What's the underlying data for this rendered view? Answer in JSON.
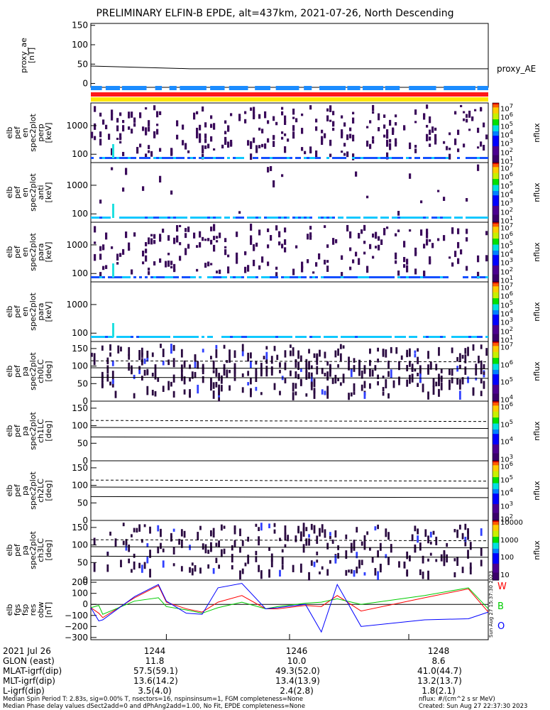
{
  "title": "PRELIMINARY ELFIN-B EPDE, alt=437km, 2021-07-26, North Descending",
  "panels": [
    {
      "ylabel_lines": [
        "proxy_ae",
        "[nT]"
      ],
      "right_label": "proxy_AE",
      "yticks": [
        "150",
        "100",
        "50",
        "0"
      ]
    },
    {
      "ylabel_lines": [
        "elb",
        "pef",
        "en",
        "spec2plot",
        "perp",
        "[keV]"
      ],
      "yticks": [
        "1000",
        "100"
      ]
    },
    {
      "ylabel_lines": [
        "elb",
        "pef",
        "en",
        "spec2plot",
        "anti",
        "[keV]"
      ],
      "yticks": [
        "1000",
        "100"
      ]
    },
    {
      "ylabel_lines": [
        "elb",
        "pef",
        "en",
        "spec2plot",
        "para",
        "[keV]"
      ],
      "yticks": [
        "1000",
        "100"
      ]
    },
    {
      "ylabel_lines": [
        "elb",
        "pef",
        "en",
        "spec2plot",
        "para",
        "[keV]"
      ],
      "yticks": [
        "1000",
        "100"
      ]
    },
    {
      "ylabel_lines": [
        "elb",
        "pef",
        "pa",
        "spec2plot",
        "ch0LC",
        "[deg]"
      ],
      "yticks": [
        "150",
        "100",
        "50",
        "0"
      ]
    },
    {
      "ylabel_lines": [
        "elb",
        "pef",
        "pa",
        "spec2plot",
        "ch1LC",
        "[deg]"
      ],
      "yticks": [
        "150",
        "100",
        "50",
        "0"
      ]
    },
    {
      "ylabel_lines": [
        "elb",
        "pef",
        "pa",
        "spec2plot",
        "ch2LC",
        "[deg]"
      ],
      "yticks": [
        "150",
        "100",
        "50",
        "0"
      ]
    },
    {
      "ylabel_lines": [
        "elb",
        "pef",
        "pa",
        "spec2plot",
        "ch3LC",
        "[deg]"
      ],
      "yticks": [
        "150",
        "100",
        "50",
        "0"
      ]
    },
    {
      "ylabel_lines": [
        "elb",
        "fgs",
        "fsp",
        "res",
        "obw",
        "[nT]"
      ],
      "yticks": [
        "200",
        "100",
        "0",
        "−100",
        "−200",
        "−300"
      ]
    }
  ],
  "colorbars": [
    {
      "label": "nflux",
      "ticks": [
        "10<sup>7</sup>",
        "10<sup>6</sup>",
        "10<sup>5</sup>",
        "10<sup>4</sup>",
        "10<sup>3</sup>",
        "10<sup>2</sup>",
        "10<sup>1</sup>"
      ]
    },
    {
      "label": "nflux",
      "ticks": [
        "10<sup>7</sup>",
        "10<sup>6</sup>",
        "10<sup>5</sup>",
        "10<sup>4</sup>",
        "10<sup>3</sup>",
        "10<sup>2</sup>",
        "10<sup>1</sup>"
      ]
    },
    {
      "label": "nflux",
      "ticks": [
        "10<sup>7</sup>",
        "10<sup>6</sup>",
        "10<sup>5</sup>",
        "10<sup>4</sup>",
        "10<sup>3</sup>",
        "10<sup>2</sup>",
        "10<sup>1</sup>"
      ]
    },
    {
      "label": "nflux",
      "ticks": [
        "10<sup>7</sup>",
        "10<sup>6</sup>",
        "10<sup>5</sup>",
        "10<sup>4</sup>",
        "10<sup>3</sup>",
        "10<sup>2</sup>",
        "10<sup>1</sup>"
      ]
    },
    {
      "label": "nflux",
      "ticks": [
        "10<sup>7</sup>",
        "10<sup>6</sup>",
        "10<sup>5</sup>",
        "10<sup>4</sup>"
      ]
    },
    {
      "label": "nflux",
      "ticks": [
        "10<sup>6</sup>",
        "10<sup>5</sup>",
        "10<sup>4</sup>",
        "10<sup>3</sup>"
      ]
    },
    {
      "label": "nflux",
      "ticks": [
        "10<sup>6</sup>",
        "10<sup>5</sup>",
        "10<sup>4</sup>",
        "10<sup>3</sup>",
        "10<sup>2</sup>"
      ]
    },
    {
      "label": "nflux",
      "ticks": [
        "10000",
        "1000",
        "100",
        "10"
      ]
    }
  ],
  "fgm_legend": [
    {
      "label": "W",
      "color": "#ff0000"
    },
    {
      "label": "B",
      "color": "#00cc00"
    },
    {
      "label": "O",
      "color": "#0000ff"
    }
  ],
  "side_stamp": "Sun Aug 27 15:37:30 2023",
  "bottom_table": {
    "rows": [
      {
        "label": "2021 Jul 26",
        "values": [
          "1244",
          "1246",
          "1248"
        ]
      },
      {
        "label": "GLON (east)",
        "values": [
          "11.8",
          "10.0",
          "8.6"
        ]
      },
      {
        "label": "MLAT-igrf(dip)",
        "values": [
          "57.5(59.1)",
          "49.3(52.0)",
          "41.0(44.7)"
        ]
      },
      {
        "label": "MLT-igrf(dip)",
        "values": [
          "13.6(14.2)",
          "13.4(13.9)",
          "13.2(13.7)"
        ]
      },
      {
        "label": "L-igrf(dip)",
        "values": [
          "3.5(4.0)",
          "2.4(2.8)",
          "1.8(2.1)"
        ]
      }
    ]
  },
  "footer": {
    "line1_left": "Median Spin Period T: 2.83s, sig=0.00% T, nsectors=16, nspinsinsum=1, FGM completeness=None",
    "line2_left": "Median Phase delay values dSect2add=0 and dPhAng2add=1.00, No Fit, EPDE completeness=None",
    "line1_right": "nflux: #/(cm^2 s sr MeV)",
    "line2_right": "Created: Sun Aug 27 22:37:30 2023"
  },
  "chart_data": {
    "type": "line",
    "title": "PRELIMINARY ELFIN-B EPDE, alt=437km, 2021-07-26, North Descending",
    "x_ticks": [
      "1244",
      "1246",
      "1248"
    ],
    "proxy_ae": {
      "ylabel": "proxy_ae [nT]",
      "ylim": [
        -10,
        155
      ],
      "t": [
        0.0,
        0.25,
        1.0
      ],
      "values": [
        45,
        38,
        38
      ]
    },
    "fgs_fsp_res_obw": {
      "ylabel": "elb fgs fsp res obw [nT]",
      "ylim": [
        -320,
        220
      ],
      "series": [
        {
          "name": "W",
          "color": "#ff0000",
          "t": [
            0.0,
            0.02,
            0.03,
            0.11,
            0.17,
            0.19,
            0.24,
            0.28,
            0.32,
            0.38,
            0.44,
            0.47,
            0.54,
            0.58,
            0.62,
            0.68,
            0.84,
            0.95,
            1.0
          ],
          "values": [
            -30,
            -80,
            -120,
            60,
            170,
            20,
            -40,
            -70,
            20,
            80,
            -40,
            -40,
            -10,
            -20,
            80,
            -60,
            60,
            140,
            -70
          ]
        },
        {
          "name": "B",
          "color": "#00cc00",
          "t": [
            0.0,
            0.02,
            0.03,
            0.11,
            0.17,
            0.19,
            0.24,
            0.28,
            0.32,
            0.38,
            0.44,
            0.47,
            0.54,
            0.58,
            0.62,
            0.68,
            0.84,
            0.95,
            1.0
          ],
          "values": [
            -30,
            -10,
            -90,
            30,
            60,
            -20,
            -50,
            -80,
            -30,
            20,
            -40,
            -20,
            10,
            20,
            50,
            0,
            80,
            150,
            -40
          ]
        },
        {
          "name": "O",
          "color": "#0000ff",
          "t": [
            0.0,
            0.02,
            0.03,
            0.11,
            0.17,
            0.19,
            0.24,
            0.28,
            0.32,
            0.38,
            0.44,
            0.47,
            0.54,
            0.58,
            0.62,
            0.68,
            0.84,
            0.95,
            1.0
          ],
          "values": [
            -30,
            -150,
            -140,
            70,
            180,
            30,
            -80,
            -90,
            150,
            190,
            -40,
            -30,
            0,
            -250,
            180,
            -200,
            -140,
            -130,
            -70
          ]
        }
      ]
    }
  }
}
